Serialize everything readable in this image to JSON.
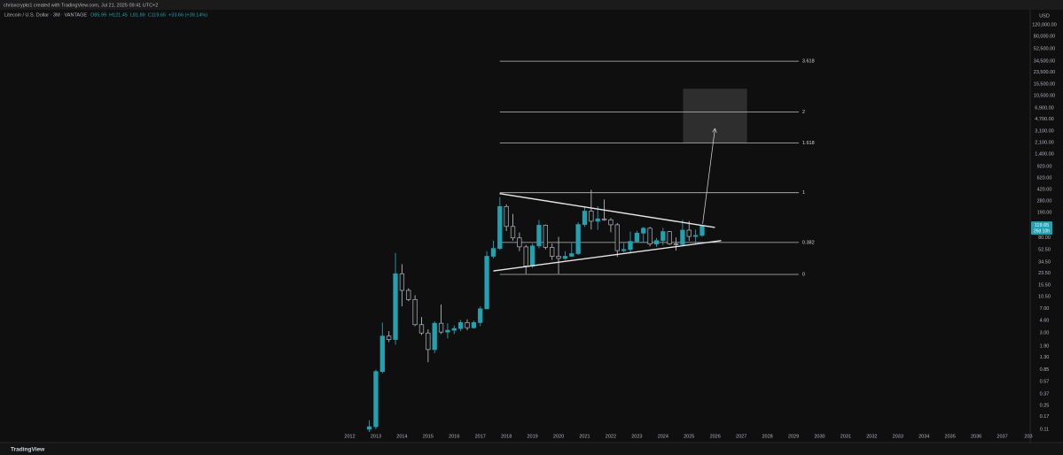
{
  "header": {
    "credit": "chrisxcrypto1 created with TradingView.com, Jul 21, 2025 09:41 UTC+2"
  },
  "footer": {
    "brand": "TradingView"
  },
  "chart_data": {
    "type": "candlestick",
    "symbol_title": "Litecoin / U.S. Dollar · 3M · VANTAGE",
    "ohlc_labels": [
      "O85.99",
      "H121.45",
      "L81.89",
      "C119.65",
      "+33.66 (+39.14%)"
    ],
    "currency": "USD",
    "log_scale": true,
    "grid": false,
    "up_color": "#22a1b0",
    "down_color": "#b2b5be",
    "x": [
      2012.75,
      2013,
      2013.25,
      2013.5,
      2013.75,
      2014,
      2014.25,
      2014.5,
      2014.75,
      2015,
      2015.25,
      2015.5,
      2015.75,
      2016,
      2016.25,
      2016.5,
      2016.75,
      2017,
      2017.25,
      2017.5,
      2017.75,
      2018,
      2018.25,
      2018.5,
      2018.75,
      2019,
      2019.25,
      2019.5,
      2019.75,
      2020,
      2020.25,
      2020.5,
      2020.75,
      2021,
      2021.25,
      2021.5,
      2021.75,
      2022,
      2022.25,
      2022.5,
      2022.75,
      2023,
      2023.25,
      2023.5,
      2023.75,
      2024,
      2024.25,
      2024.5,
      2024.75,
      2025,
      2025.25,
      2025.5
    ],
    "open": [
      0.11,
      0.12,
      0.8,
      2.7,
      2.4,
      23,
      13,
      9.5,
      4,
      3,
      1.7,
      4.2,
      3.1,
      3.3,
      3.5,
      4.3,
      3.6,
      4.3,
      6.9,
      42,
      55,
      232,
      117,
      79,
      58,
      30,
      60,
      122,
      57,
      42,
      39,
      42,
      46,
      125,
      198,
      140,
      152,
      147,
      124,
      51,
      53,
      70,
      93,
      110,
      64,
      72,
      98,
      64,
      63,
      103,
      83,
      85.99
    ],
    "high": [
      0.15,
      0.85,
      4.3,
      3.2,
      47,
      32,
      14,
      11,
      5.2,
      3.4,
      4.5,
      8,
      4.2,
      3.9,
      4.7,
      4.8,
      4.6,
      7.5,
      50,
      72,
      320,
      250,
      180,
      95,
      62,
      65,
      146,
      125,
      65,
      82,
      50,
      66,
      135,
      235,
      412,
      235,
      296,
      157,
      132,
      66,
      98,
      101,
      115,
      115,
      79,
      111,
      100,
      80,
      147,
      141,
      105,
      121.45
    ],
    "low": [
      0.1,
      0.11,
      0.75,
      2.2,
      2.0,
      7.5,
      9,
      3.8,
      2.8,
      1.1,
      1.5,
      2.9,
      2.5,
      2.9,
      3.2,
      3.3,
      3.5,
      3.8,
      6.8,
      39,
      52,
      100,
      72,
      50,
      23,
      28,
      55,
      53,
      37,
      23,
      37,
      41,
      44,
      115,
      105,
      104,
      142,
      96,
      41,
      48,
      46,
      68,
      66,
      59,
      58,
      61,
      62,
      51,
      60,
      71,
      64,
      81.89
    ],
    "close": [
      0.12,
      0.8,
      2.7,
      2.4,
      23,
      13,
      9.5,
      4,
      3,
      1.7,
      4.2,
      3.1,
      3.3,
      3.5,
      4.3,
      3.6,
      4.3,
      6.9,
      42,
      55,
      232,
      117,
      79,
      58,
      30,
      60,
      122,
      57,
      42,
      39,
      42,
      46,
      125,
      198,
      140,
      152,
      147,
      124,
      51,
      53,
      70,
      93,
      110,
      64,
      72,
      98,
      64,
      63,
      103,
      83,
      86,
      119.65
    ],
    "last_price_label": "119.65",
    "countdown": "26d 10h",
    "xlim": [
      1998.6,
      2038
    ],
    "ylim": [
      0.1,
      195000
    ],
    "xticks": [
      2012,
      2013,
      2014,
      2015,
      2016,
      2017,
      2018,
      2019,
      2020,
      2021,
      2022,
      2023,
      2024,
      2025,
      2026,
      2027,
      2028,
      2029,
      2030,
      2031,
      2032,
      2033,
      2034,
      2035,
      2036,
      2037,
      {
        "value": 2038,
        "label": "203"
      }
    ],
    "yticks": [
      {
        "value": 120000,
        "label": "120,000.00"
      },
      {
        "value": 80000,
        "label": "80,000.00"
      },
      {
        "value": 52500,
        "label": "52,500.00"
      },
      {
        "value": 34500,
        "label": "34,500.00"
      },
      {
        "value": 23500,
        "label": "23,500.00"
      },
      {
        "value": 15500,
        "label": "15,500.00"
      },
      {
        "value": 10500,
        "label": "10,500.00"
      },
      {
        "value": 6900,
        "label": "6,900.00"
      },
      {
        "value": 4700,
        "label": "4,700.00"
      },
      {
        "value": 3100,
        "label": "3,100.00"
      },
      {
        "value": 2100,
        "label": "2,100.00"
      },
      {
        "value": 1400,
        "label": "1,400.00"
      },
      {
        "value": 920,
        "label": "920.00"
      },
      {
        "value": 620,
        "label": "620.00"
      },
      {
        "value": 420,
        "label": "420.00"
      },
      {
        "value": 280,
        "label": "280.00"
      },
      {
        "value": 190,
        "label": "190.00"
      },
      {
        "value": 80,
        "label": "80.00"
      },
      {
        "value": 52.5,
        "label": "52.50"
      },
      {
        "value": 34.5,
        "label": "34.50"
      },
      {
        "value": 23.5,
        "label": "23.50"
      },
      {
        "value": 15.5,
        "label": "15.50"
      },
      {
        "value": 10.5,
        "label": "10.50"
      },
      {
        "value": 7,
        "label": "7.00"
      },
      {
        "value": 4.6,
        "label": "4.60"
      },
      {
        "value": 3,
        "label": "3.00"
      },
      {
        "value": 1.9,
        "label": "1.90"
      },
      {
        "value": 1.3,
        "label": "1.30"
      },
      {
        "value": 0.85,
        "label": "0.85"
      },
      {
        "value": 0.57,
        "label": "0.57"
      },
      {
        "value": 0.37,
        "label": "0.37"
      },
      {
        "value": 0.25,
        "label": "0.25"
      },
      {
        "value": 0.17,
        "label": "0.17"
      },
      {
        "value": 0.11,
        "label": "0.11"
      }
    ],
    "fib_x": [
      2017.75,
      2029.2
    ],
    "fib_levels": [
      {
        "label": "3.618",
        "value": 34300
      },
      {
        "label": "2",
        "value": 6010
      },
      {
        "label": "1.618",
        "value": 2065
      },
      {
        "label": "1",
        "value": 373
      },
      {
        "label": "0.382",
        "value": 67.6
      },
      {
        "label": "0",
        "value": 22.5
      }
    ],
    "trendlines": [
      {
        "x": [
          2017.74,
          2025.99
        ],
        "y": [
          362,
          113
        ]
      },
      {
        "x": [
          2017.5,
          2026.23
        ],
        "y": [
          25.4,
          71.8
        ]
      }
    ],
    "arrow": {
      "x": [
        2025.52,
        2025.99
      ],
      "y": [
        128,
        3365
      ]
    },
    "target_box": {
      "x": [
        2024.77,
        2027.22
      ],
      "y": [
        2065,
        13300
      ]
    }
  }
}
